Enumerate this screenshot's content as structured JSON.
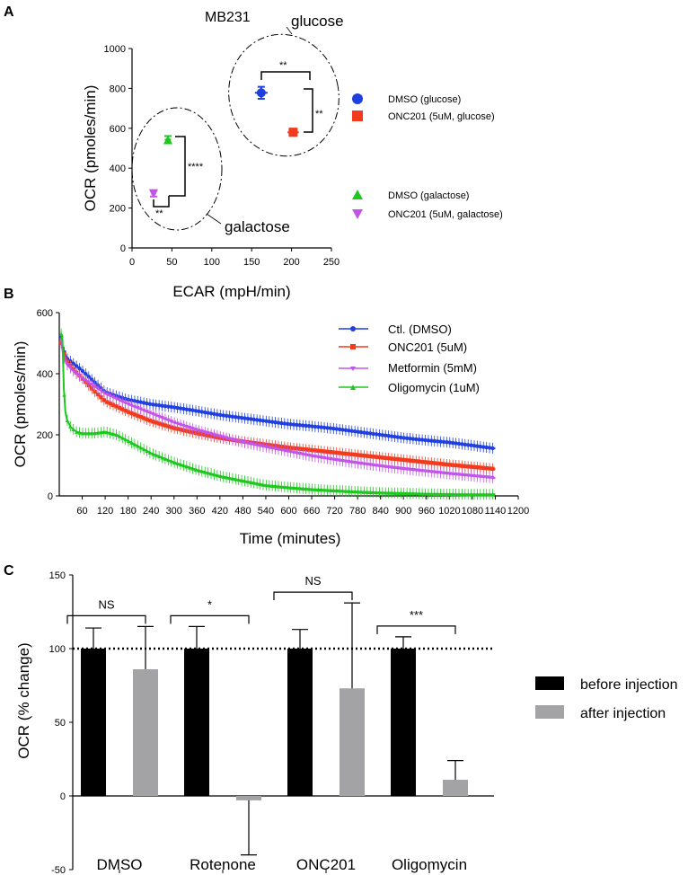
{
  "colors": {
    "blue": "#1f3fe0",
    "red": "#f23a1f",
    "purple": "#c255e8",
    "green": "#1ec71e",
    "black": "#000000",
    "gray": "#a3a3a6"
  },
  "chart_data": [
    {
      "panel": "A",
      "type": "scatter",
      "title": "MB231",
      "xlabel": "ECAR (mpH/min)",
      "ylabel": "OCR (pmoles/min)",
      "xlim": [
        0,
        250
      ],
      "ylim": [
        0,
        1000
      ],
      "xticks": [
        "0",
        "50",
        "100",
        "150",
        "200",
        "250"
      ],
      "yticks": [
        "0",
        "200",
        "400",
        "600",
        "800",
        "1000"
      ],
      "series": [
        {
          "name": "DMSO (glucose)",
          "marker": "circle",
          "color": "#1f3fe0",
          "x": 162,
          "y": 778,
          "xerr": 8,
          "yerr": 30
        },
        {
          "name": "ONC201 (5uM, glucose)",
          "marker": "square",
          "color": "#f23a1f",
          "x": 202,
          "y": 580,
          "xerr": 7,
          "yerr": 18
        },
        {
          "name": "DMSO (galactose)",
          "marker": "triangle-up",
          "color": "#1ec71e",
          "x": 45,
          "y": 543,
          "xerr": 4,
          "yerr": 18
        },
        {
          "name": "ONC201 (5uM, galactose)",
          "marker": "triangle-down",
          "color": "#c255e8",
          "x": 27,
          "y": 272,
          "xerr": 3,
          "yerr": 14
        }
      ],
      "brackets": [
        {
          "between": [
            "DMSO (glucose)",
            "DMSO (glucose) x-shift"
          ],
          "label": "**"
        },
        {
          "between": [
            "DMSO (glucose)",
            "ONC201 (5uM, glucose)"
          ],
          "label": "**"
        },
        {
          "between": [
            "DMSO (galactose)",
            "ONC201 (5uM, galactose)"
          ],
          "label": "****"
        },
        {
          "between": [
            "ONC201 (5uM, galactose)",
            "DMSO (galactose) x-shift"
          ],
          "label": "**"
        }
      ],
      "annotations": [
        "glucose",
        "galactose"
      ]
    },
    {
      "panel": "B",
      "type": "line",
      "xlabel": "Time (minutes)",
      "ylabel": "OCR (pmoles/min)",
      "xlim": [
        0,
        1200
      ],
      "ylim": [
        0,
        600
      ],
      "xticks": [
        "60",
        "120",
        "180",
        "240",
        "300",
        "360",
        "420",
        "480",
        "540",
        "600",
        "660",
        "720",
        "780",
        "840",
        "900",
        "960",
        "1020",
        "1080",
        "1140",
        "1200"
      ],
      "yticks": [
        "0",
        "200",
        "400",
        "600"
      ],
      "series": [
        {
          "name": "Ctl. (DMSO)",
          "marker": "circle",
          "color": "#1f3fe0",
          "x": [
            5,
            10,
            20,
            40,
            60,
            90,
            120,
            180,
            240,
            300,
            360,
            420,
            480,
            540,
            600,
            660,
            720,
            780,
            840,
            900,
            960,
            1020,
            1080,
            1140
          ],
          "y": [
            520,
            480,
            450,
            430,
            410,
            375,
            340,
            315,
            300,
            290,
            278,
            265,
            255,
            245,
            235,
            228,
            220,
            210,
            200,
            190,
            182,
            175,
            165,
            155
          ]
        },
        {
          "name": "ONC201 (5uM)",
          "marker": "square",
          "color": "#f23a1f",
          "x": [
            5,
            10,
            20,
            40,
            60,
            90,
            120,
            180,
            240,
            300,
            360,
            420,
            480,
            540,
            600,
            660,
            720,
            780,
            840,
            900,
            960,
            1020,
            1080,
            1140
          ],
          "y": [
            500,
            475,
            440,
            410,
            385,
            345,
            310,
            275,
            245,
            222,
            205,
            190,
            178,
            168,
            158,
            150,
            142,
            134,
            126,
            118,
            110,
            102,
            95,
            88
          ]
        },
        {
          "name": "Metformin (5mM)",
          "marker": "triangle-down",
          "color": "#c255e8",
          "x": [
            5,
            10,
            20,
            40,
            60,
            90,
            120,
            180,
            240,
            300,
            360,
            420,
            480,
            540,
            600,
            660,
            720,
            780,
            840,
            900,
            960,
            1020,
            1080,
            1140
          ],
          "y": [
            510,
            460,
            430,
            405,
            385,
            360,
            335,
            300,
            270,
            240,
            215,
            195,
            175,
            160,
            145,
            130,
            118,
            107,
            97,
            88,
            80,
            72,
            65,
            58
          ]
        },
        {
          "name": "Oligomycin (1uM)",
          "marker": "triangle-up",
          "color": "#1ec71e",
          "x": [
            5,
            8,
            12,
            16,
            20,
            30,
            45,
            60,
            90,
            120,
            150,
            180,
            240,
            300,
            360,
            420,
            480,
            540,
            600,
            660,
            720,
            780,
            840,
            900,
            960,
            1020,
            1080,
            1140
          ],
          "y": [
            530,
            525,
            350,
            275,
            250,
            225,
            210,
            205,
            205,
            210,
            200,
            180,
            140,
            110,
            85,
            65,
            50,
            35,
            28,
            22,
            18,
            14,
            11,
            9,
            7,
            6,
            5,
            5
          ]
        }
      ]
    },
    {
      "panel": "C",
      "type": "bar",
      "ylabel": "OCR (% change)",
      "ylim": [
        -50,
        150
      ],
      "yticks": [
        "-50",
        "0",
        "50",
        "100",
        "150"
      ],
      "categories": [
        "DMSO",
        "Rotenone",
        "ONC201",
        "Oligomycin"
      ],
      "reference_line": 100,
      "series": [
        {
          "name": "before injection",
          "color": "#000000",
          "values": [
            100,
            100,
            100,
            100
          ],
          "errors": [
            14,
            15,
            13,
            8
          ]
        },
        {
          "name": "after injection",
          "color": "#a3a3a6",
          "values": [
            86,
            -3,
            73,
            11
          ],
          "errors": [
            29,
            37,
            58,
            13
          ]
        }
      ],
      "significance": [
        "NS",
        "*",
        "NS",
        "***"
      ]
    }
  ]
}
